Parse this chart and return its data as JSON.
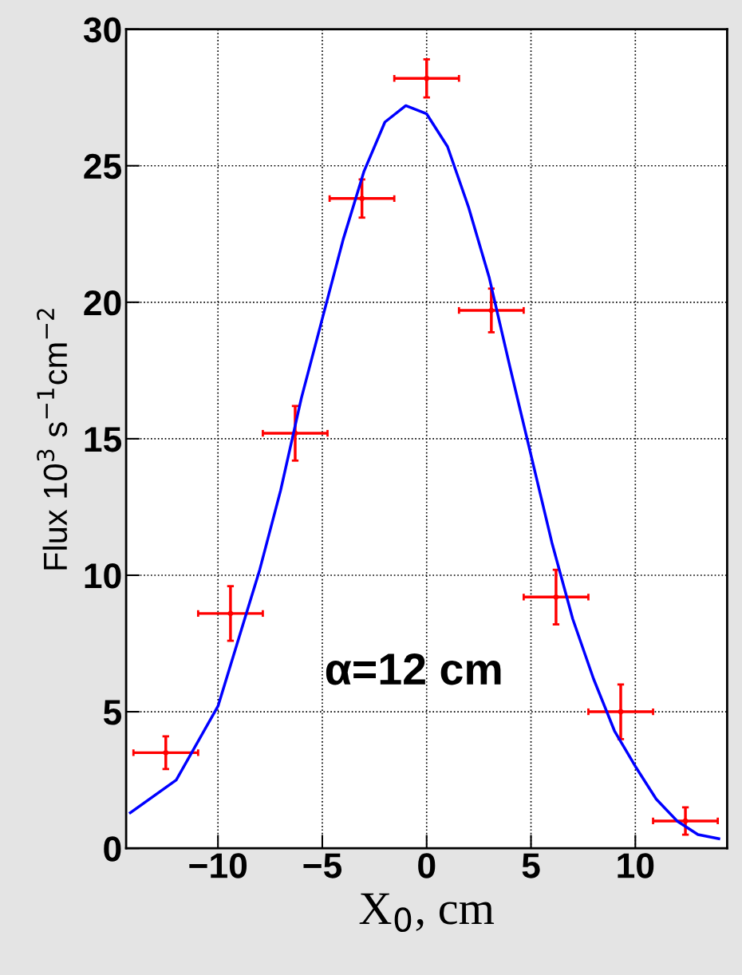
{
  "chart_data": {
    "type": "scatter",
    "xlabel": "X$_{0}$, cm",
    "ylabel": "Flux 10$^{3}$ s$^{−1}$cm$^{−2}$",
    "xlim": [
      -14.4,
      14.4
    ],
    "ylim": [
      0,
      30
    ],
    "xticks": [
      {
        "value": -10,
        "label": "−10"
      },
      {
        "value": -5,
        "label": "−5"
      },
      0,
      5,
      10
    ],
    "yticks": [
      0,
      5,
      10,
      15,
      20,
      25,
      30
    ],
    "grid": true,
    "annotations": [
      "α=12 cm"
    ],
    "series": [
      {
        "color": "#ff0000",
        "x": [
          -12.5,
          -9.4,
          -6.3,
          -3.1,
          0,
          3.1,
          6.2,
          9.3,
          12.4
        ],
        "values": [
          3.5,
          8.6,
          15.2,
          23.8,
          28.2,
          19.7,
          9.2,
          5.0,
          1.0
        ],
        "errors": [
          0.6,
          1.0,
          1.0,
          0.7,
          0.7,
          0.8,
          1.0,
          1.0,
          0.5
        ],
        "xerrors": [
          1.55,
          1.55,
          1.55,
          1.55,
          1.55,
          1.55,
          1.55,
          1.55,
          1.55
        ]
      },
      {
        "type": "line",
        "color": "#0000ff",
        "x": [
          -14.2,
          -12,
          -10,
          -9,
          -8,
          -7,
          -6,
          -5,
          -4,
          -3,
          -2,
          -1,
          0,
          1,
          2,
          3,
          4,
          5,
          6,
          7,
          8,
          9,
          10,
          11,
          12,
          13,
          14
        ],
        "values": [
          1.3,
          2.5,
          5.2,
          7.7,
          10.2,
          13.1,
          16.5,
          19.4,
          22.3,
          24.8,
          26.6,
          27.2,
          26.9,
          25.7,
          23.5,
          20.9,
          17.6,
          14.4,
          11.2,
          8.4,
          6.2,
          4.3,
          3.0,
          1.8,
          1.0,
          0.5,
          0.35
        ]
      }
    ]
  }
}
